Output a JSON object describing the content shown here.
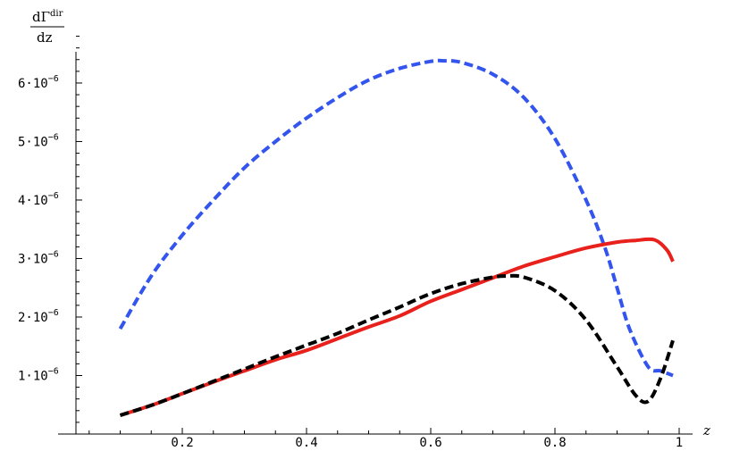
{
  "chart_data": {
    "type": "line",
    "title": "",
    "xlabel": "z",
    "ylabel": {
      "numerator_base": "dΓ",
      "numerator_sup": "dir",
      "denominator": "dz"
    },
    "xlim": [
      0.0,
      1.0
    ],
    "ylim": [
      0.0,
      6.9e-06
    ],
    "x_ticks": [
      {
        "value": 0.2,
        "label": "0.2"
      },
      {
        "value": 0.4,
        "label": "0.4"
      },
      {
        "value": 0.6,
        "label": "0.6"
      },
      {
        "value": 0.8,
        "label": "0.8"
      },
      {
        "value": 1.0,
        "label": "1"
      }
    ],
    "y_ticks": [
      {
        "value": 1e-06,
        "mantissa": "1·10",
        "exponent": "−6"
      },
      {
        "value": 2e-06,
        "mantissa": "2·10",
        "exponent": "−6"
      },
      {
        "value": 3e-06,
        "mantissa": "3·10",
        "exponent": "−6"
      },
      {
        "value": 4e-06,
        "mantissa": "4·10",
        "exponent": "−6"
      },
      {
        "value": 5e-06,
        "mantissa": "5·10",
        "exponent": "−6"
      },
      {
        "value": 6e-06,
        "mantissa": "6·10",
        "exponent": "−6"
      }
    ],
    "grid": false,
    "legend": "none",
    "series": [
      {
        "color": "#3355ee",
        "style": "dashed",
        "x": [
          0.1,
          0.15,
          0.2,
          0.25,
          0.3,
          0.35,
          0.4,
          0.45,
          0.5,
          0.55,
          0.6,
          0.62,
          0.65,
          0.7,
          0.75,
          0.8,
          0.85,
          0.88,
          0.9,
          0.92,
          0.95,
          0.97,
          0.99
        ],
        "y": [
          1.8e-06,
          2.7e-06,
          3.4e-06,
          4e-06,
          4.55e-06,
          5e-06,
          5.4e-06,
          5.75e-06,
          6.05e-06,
          6.25e-06,
          6.37e-06,
          6.38e-06,
          6.35e-06,
          6.15e-06,
          5.75e-06,
          5.05e-06,
          4e-06,
          3.2e-06,
          2.5e-06,
          1.8e-06,
          1.15e-06,
          1.08e-06,
          1e-06
        ]
      },
      {
        "color": "#e8211c",
        "style": "solid",
        "x": [
          0.1,
          0.15,
          0.2,
          0.25,
          0.3,
          0.35,
          0.4,
          0.45,
          0.5,
          0.55,
          0.6,
          0.65,
          0.7,
          0.75,
          0.8,
          0.85,
          0.9,
          0.93,
          0.96,
          0.98,
          0.99
        ],
        "y": [
          3.2e-07,
          4.9e-07,
          6.9e-07,
          8.9e-07,
          1.08e-06,
          1.27e-06,
          1.43e-06,
          1.63e-06,
          1.83e-06,
          2.02e-06,
          2.27e-06,
          2.47e-06,
          2.67e-06,
          2.87e-06,
          3.03e-06,
          3.18e-06,
          3.28e-06,
          3.31e-06,
          3.32e-06,
          3.15e-06,
          2.95e-06
        ]
      },
      {
        "color": "#000000",
        "style": "dashed",
        "x": [
          0.1,
          0.15,
          0.2,
          0.25,
          0.3,
          0.35,
          0.4,
          0.45,
          0.5,
          0.55,
          0.6,
          0.65,
          0.7,
          0.72,
          0.75,
          0.8,
          0.85,
          0.9,
          0.93,
          0.95,
          0.97,
          0.99
        ],
        "y": [
          3.2e-07,
          4.9e-07,
          6.9e-07,
          9e-07,
          1.11e-06,
          1.32e-06,
          1.52e-06,
          1.72e-06,
          1.95e-06,
          2.17e-06,
          2.4e-06,
          2.57e-06,
          2.68e-06,
          2.7e-06,
          2.68e-06,
          2.45e-06,
          1.95e-06,
          1.15e-06,
          6.6e-07,
          5.6e-07,
          9.5e-07,
          1.6e-06
        ]
      }
    ]
  }
}
